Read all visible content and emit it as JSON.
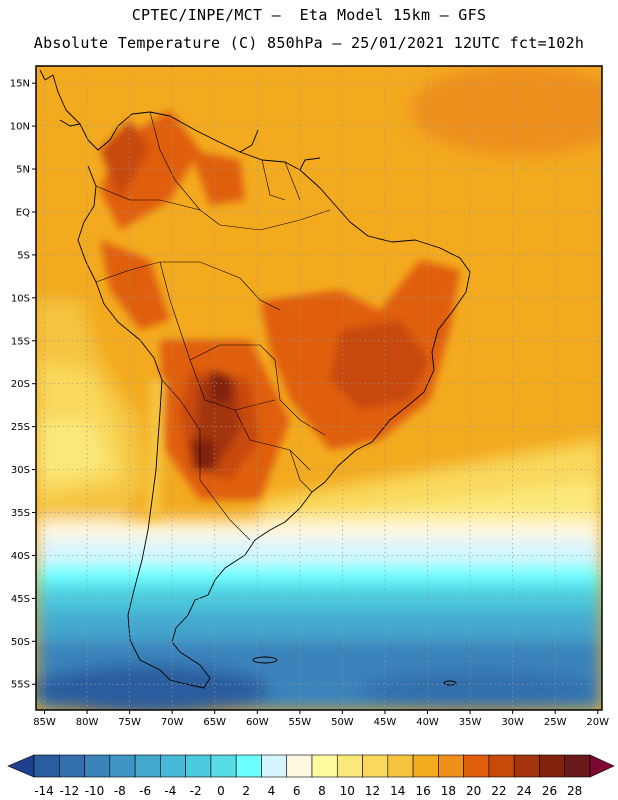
{
  "header": {
    "line1": "CPTEC/INPE/MCT –  Eta Model 15km – GFS",
    "line2": "Absolute Temperature (C) 850hPa – 25/01/2021 12UTC fct=102h"
  },
  "axes": {
    "lat_labels": [
      "15N",
      "10N",
      "5N",
      "EQ",
      "5S",
      "10S",
      "15S",
      "20S",
      "25S",
      "30S",
      "35S",
      "40S",
      "45S",
      "50S",
      "55S"
    ],
    "lat_values": [
      15,
      10,
      5,
      0,
      -5,
      -10,
      -15,
      -20,
      -25,
      -30,
      -35,
      -40,
      -45,
      -50,
      -55
    ],
    "lon_labels": [
      "85W",
      "80W",
      "75W",
      "70W",
      "65W",
      "60W",
      "55W",
      "50W",
      "45W",
      "40W",
      "35W",
      "30W",
      "25W",
      "20W"
    ],
    "lon_values": [
      -85,
      -80,
      -75,
      -70,
      -65,
      -60,
      -55,
      -50,
      -45,
      -40,
      -35,
      -30,
      -25,
      -20
    ],
    "lat_range": [
      -58,
      17
    ],
    "lon_range": [
      -86,
      -19.5
    ],
    "grid": "dotted"
  },
  "colorbar": {
    "labels": [
      "-14",
      "-12",
      "-10",
      "-8",
      "-6",
      "-4",
      "-2",
      "0",
      "2",
      "4",
      "6",
      "8",
      "10",
      "12",
      "14",
      "16",
      "18",
      "20",
      "22",
      "24",
      "26",
      "28"
    ],
    "colors": [
      "#1d3f8e",
      "#2a5d9f",
      "#3270ad",
      "#3a83bb",
      "#3f96c6",
      "#44a8cf",
      "#47b8d8",
      "#4ccade",
      "#59dbe6",
      "#6dffff",
      "#d6f5ff",
      "#fff8e0",
      "#fffaa0",
      "#fbe87a",
      "#f9d85c",
      "#f5c43f",
      "#f3aa1f",
      "#ee8f1c",
      "#e05f0d",
      "#c84a0a",
      "#a3360c",
      "#82220f",
      "#6b1a1a",
      "#7d0833"
    ]
  }
}
